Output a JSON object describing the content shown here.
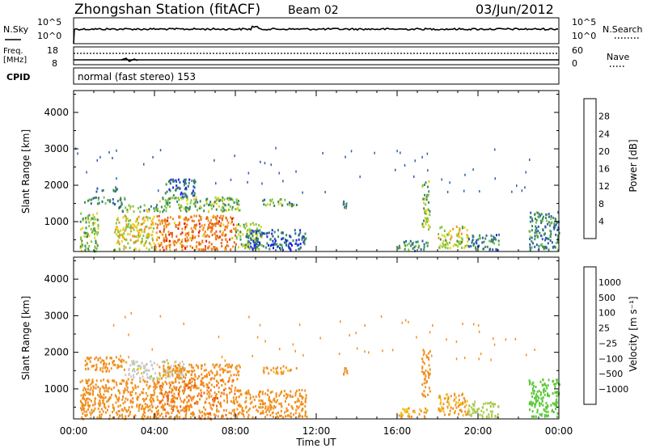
{
  "header": {
    "station": "Zhongshan Station (fitACF)",
    "beam": "Beam 02",
    "date": "03/Jun/2012"
  },
  "status_panels": {
    "nsky_label": "N.Sky",
    "nsearch_label": "N.Search",
    "freq_label": "Freq.",
    "freq_unit": "[MHz]",
    "nave_label": "Nave",
    "cpid_label": "CPID",
    "left_top_ticks": [
      "10^5",
      "10^0"
    ],
    "right_top_ticks": [
      "10^5",
      "10^0"
    ],
    "left_freq_ticks": [
      "18",
      "8"
    ],
    "right_nave_ticks": [
      "60",
      "0"
    ],
    "cpid_text": "normal (fast stereo) 153"
  },
  "x_axis": {
    "label": "Time UT",
    "tick_labels": [
      "00:00",
      "04:00",
      "08:00",
      "12:00",
      "16:00",
      "20:00",
      "00:00"
    ]
  },
  "chart_data": [
    {
      "type": "heatmap",
      "name": "power",
      "ylabel": "Slant Range [km]",
      "ylim": [
        180,
        4600
      ],
      "xlim": [
        0,
        24
      ],
      "y_ticks": [
        "1000",
        "2000",
        "3000",
        "4000"
      ],
      "y_tick_values": [
        1000,
        2000,
        3000,
        4000
      ],
      "colorbar": {
        "label": "Power [dB]",
        "ticks": [
          "4",
          "8",
          "12",
          "16",
          "20",
          "24",
          "28"
        ],
        "colors": [
          "#1f1fe8",
          "#2a5ea8",
          "#3b8a5a",
          "#7ec43c",
          "#e8d020",
          "#f09020",
          "#e86018",
          "#e01818"
        ]
      },
      "regions": [
        {
          "t": [
            0.3,
            1.2
          ],
          "r": [
            200,
            1300
          ],
          "v": 14
        },
        {
          "t": [
            0.5,
            2.5
          ],
          "r": [
            1500,
            1700
          ],
          "v": 9
        },
        {
          "t": [
            1.0,
            2.2
          ],
          "r": [
            1850,
            1950
          ],
          "v": 8
        },
        {
          "t": [
            2.0,
            4.0
          ],
          "r": [
            250,
            1200
          ],
          "v": 18
        },
        {
          "t": [
            2.2,
            4.5
          ],
          "r": [
            1300,
            1500
          ],
          "v": 12
        },
        {
          "t": [
            4.0,
            8.0
          ],
          "r": [
            250,
            1200
          ],
          "v": 24
        },
        {
          "t": [
            4.2,
            8.2
          ],
          "r": [
            1300,
            1700
          ],
          "v": 13
        },
        {
          "t": [
            4.5,
            6.0
          ],
          "r": [
            1700,
            2200
          ],
          "v": 7
        },
        {
          "t": [
            8.0,
            9.3
          ],
          "r": [
            250,
            1000
          ],
          "v": 15
        },
        {
          "t": [
            9.3,
            11.0
          ],
          "r": [
            1450,
            1650
          ],
          "v": 12
        },
        {
          "t": [
            8.5,
            11.5
          ],
          "r": [
            250,
            800
          ],
          "v": 6
        },
        {
          "t": [
            13.3,
            13.5
          ],
          "r": [
            1400,
            1600
          ],
          "v": 8
        },
        {
          "t": [
            16.0,
            17.5
          ],
          "r": [
            220,
            500
          ],
          "v": 10
        },
        {
          "t": [
            17.2,
            17.6
          ],
          "r": [
            800,
            2200
          ],
          "v": 14
        },
        {
          "t": [
            18.0,
            19.5
          ],
          "r": [
            300,
            900
          ],
          "v": 16
        },
        {
          "t": [
            19.5,
            21.0
          ],
          "r": [
            250,
            700
          ],
          "v": 8
        },
        {
          "t": [
            22.5,
            24.0
          ],
          "r": [
            250,
            1300
          ],
          "v": 9
        }
      ]
    },
    {
      "type": "heatmap",
      "name": "velocity",
      "ylabel": "Slant Range [km]",
      "ylim": [
        180,
        4600
      ],
      "xlim": [
        0,
        24
      ],
      "y_ticks": [
        "1000",
        "2000",
        "3000",
        "4000"
      ],
      "y_tick_values": [
        1000,
        2000,
        3000,
        4000
      ],
      "colorbar": {
        "label": "Velocity [m s⁻¹]",
        "ticks": [
          "1000",
          "500",
          "100",
          "25",
          "−25",
          "−100",
          "−500",
          "−1000"
        ],
        "colors": [
          "#2850c8",
          "#4a8a5a",
          "#5cc83a",
          "#aaca50",
          "#c8c8c8",
          "#f0c020",
          "#f09020",
          "#f06018",
          "#e01818"
        ]
      },
      "regions": [
        {
          "t": [
            0.3,
            4.0
          ],
          "r": [
            200,
            1300
          ],
          "v": -300
        },
        {
          "t": [
            0.5,
            2.5
          ],
          "r": [
            1500,
            1900
          ],
          "v": -300
        },
        {
          "t": [
            2.5,
            5.5
          ],
          "r": [
            1300,
            1800
          ],
          "v": 0
        },
        {
          "t": [
            4.0,
            8.0
          ],
          "r": [
            200,
            1300
          ],
          "v": -400
        },
        {
          "t": [
            4.2,
            8.2
          ],
          "r": [
            1300,
            1700
          ],
          "v": -200
        },
        {
          "t": [
            8.0,
            11.5
          ],
          "r": [
            250,
            1000
          ],
          "v": -300
        },
        {
          "t": [
            9.3,
            11.0
          ],
          "r": [
            1450,
            1650
          ],
          "v": -150
        },
        {
          "t": [
            13.3,
            13.5
          ],
          "r": [
            1400,
            1600
          ],
          "v": -300
        },
        {
          "t": [
            16.0,
            17.5
          ],
          "r": [
            220,
            500
          ],
          "v": -100
        },
        {
          "t": [
            17.2,
            17.6
          ],
          "r": [
            800,
            2200
          ],
          "v": -300
        },
        {
          "t": [
            18.0,
            19.5
          ],
          "r": [
            300,
            900
          ],
          "v": -120
        },
        {
          "t": [
            19.5,
            21.0
          ],
          "r": [
            250,
            700
          ],
          "v": 60
        },
        {
          "t": [
            22.5,
            24.0
          ],
          "r": [
            250,
            1300
          ],
          "v": 300
        }
      ]
    }
  ]
}
